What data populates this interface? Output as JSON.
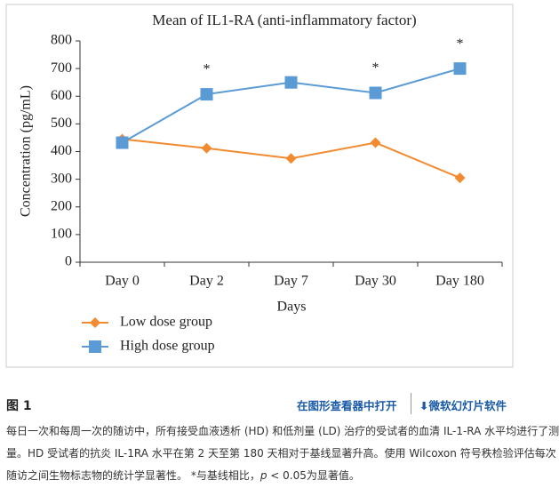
{
  "chart_data": {
    "type": "line",
    "title": "Mean of IL1-RA (anti-inflammatory factor)",
    "x_label": "Days",
    "y_label": "Concentration (pg/mL)",
    "categories": [
      "Day 0",
      "Day 2",
      "Day 7",
      "Day 30",
      "Day 180"
    ],
    "series": [
      {
        "name": "Low dose group",
        "color": "#f28a30",
        "marker": "diamond",
        "values": [
          445,
          412,
          375,
          432,
          305
        ]
      },
      {
        "name": "High dose group",
        "color": "#5b9bd5",
        "marker": "square",
        "values": [
          432,
          607,
          650,
          612,
          700
        ]
      }
    ],
    "annotations": [
      {
        "text": "*",
        "category": "Day 2"
      },
      {
        "text": "*",
        "category": "Day 30"
      },
      {
        "text": "*",
        "category": "Day 180"
      }
    ],
    "ylim": [
      0,
      800
    ],
    "yticks": [
      0,
      100,
      200,
      300,
      400,
      500,
      600,
      700,
      800
    ],
    "legend": "bottom-left"
  },
  "figure": {
    "label": "图 1",
    "open_link": "在图形查看器中打开",
    "download_link": "微软幻灯片软件",
    "caption_lines": [
      "每日一次和每周一次的随访中，所有接受血液透析 (HD) 和低剂量 (LD) 治疗的受试者的血清 IL-1-RA 水平均进行了测",
      "量。HD 受试者的抗炎 IL-1RA 水平在第 2 天至第 180 天相对于基线显著升高。使用 Wilcoxon 符号秩检验评估每次"
    ],
    "caption_last": [
      "随访之间生物标志物的统计学显著性。 *与基线相比，",
      "p",
      " < 0.05为显著值。"
    ]
  }
}
